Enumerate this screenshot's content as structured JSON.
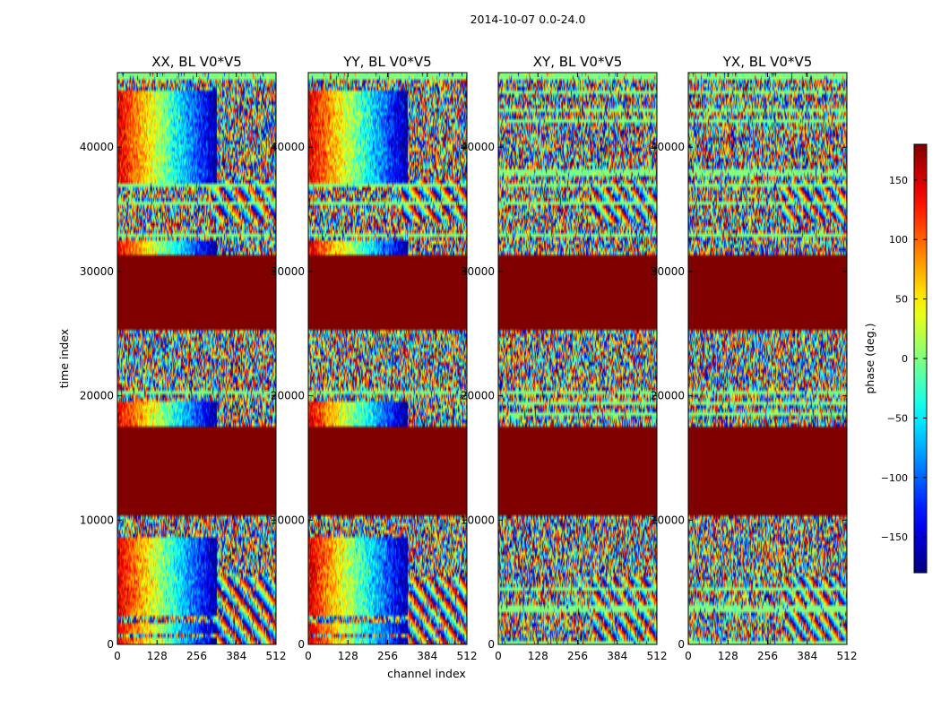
{
  "chart_data": {
    "type": "heatmap",
    "suptitle": "2014-10-07 0.0-24.0",
    "panels": [
      {
        "title": "XX, BL V0*V5",
        "coherent_rows": [
          [
            0,
            700
          ],
          [
            800,
            1600
          ],
          [
            2400,
            6800
          ],
          [
            6800,
            8600
          ],
          [
            17400,
            19500
          ],
          [
            31200,
            32400
          ],
          [
            37000,
            44600
          ]
        ],
        "slope_shift": 0.0
      },
      {
        "title": "YY, BL V0*V5",
        "coherent_rows": [
          [
            0,
            700
          ],
          [
            800,
            1600
          ],
          [
            2400,
            6800
          ],
          [
            6800,
            8600
          ],
          [
            17400,
            19500
          ],
          [
            31200,
            32400
          ],
          [
            37000,
            44600
          ]
        ],
        "slope_shift": 0.3
      },
      {
        "title": "XY, BL V0*V5",
        "coherent_rows": [],
        "slope_shift": 1.0
      },
      {
        "title": "YX, BL V0*V5",
        "coherent_rows": [],
        "slope_shift": 1.6
      }
    ],
    "flagged_rows": [
      [
        10400,
        17400
      ],
      [
        25400,
        31200
      ]
    ],
    "flagged_phase": 180,
    "x": {
      "label": "channel index",
      "ticks": [
        0,
        128,
        256,
        384,
        512
      ],
      "range": [
        0,
        512
      ]
    },
    "y": {
      "label": "time index",
      "ticks": [
        0,
        10000,
        20000,
        30000,
        40000
      ],
      "range": [
        0,
        46000
      ]
    },
    "colorbar": {
      "label": "phase (deg.)",
      "ticks": [
        150,
        100,
        50,
        0,
        -50,
        -100,
        -150
      ],
      "range": [
        -180,
        180
      ],
      "colormap": "jet"
    }
  }
}
